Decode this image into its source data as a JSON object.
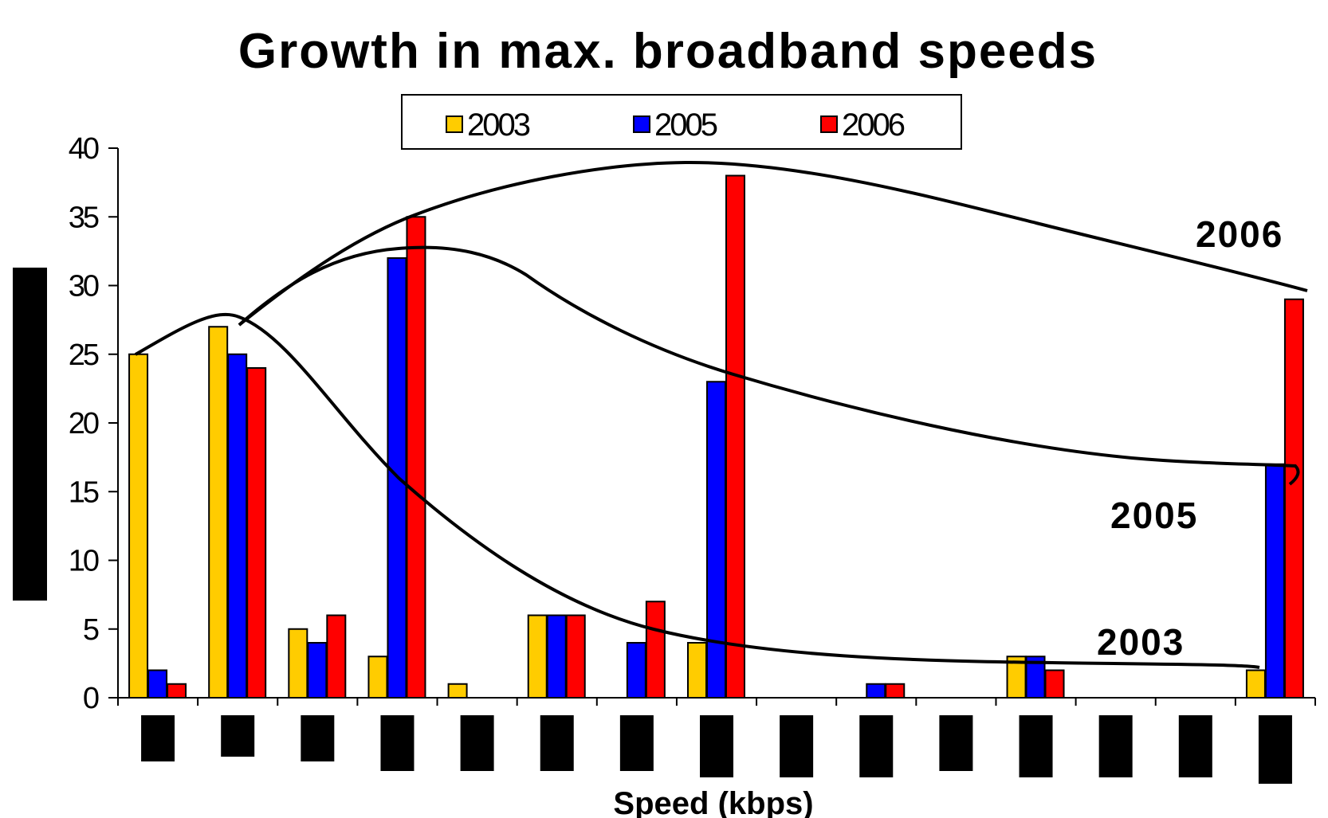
{
  "chart_data": {
    "type": "bar",
    "title": "Growth in max. broadband speeds",
    "xlabel": "Speed (kbps)",
    "ylabel": "",
    "ylim": [
      0,
      40
    ],
    "yticks": [
      0,
      5,
      10,
      15,
      20,
      25,
      30,
      35,
      40
    ],
    "grid": false,
    "legend_position": "top",
    "categories": [
      "",
      "",
      "",
      "",
      "",
      "",
      "",
      "",
      "",
      "",
      "",
      "",
      "",
      "",
      ""
    ],
    "series": [
      {
        "name": "2003",
        "color": "#FFCC00",
        "values": [
          25,
          27,
          5,
          3,
          1,
          6,
          0,
          4,
          0,
          0,
          0,
          3,
          0,
          0,
          2
        ]
      },
      {
        "name": "2005",
        "color": "#0000FF",
        "values": [
          2,
          25,
          4,
          32,
          0,
          6,
          4,
          23,
          0,
          1,
          0,
          3,
          0,
          0,
          17
        ]
      },
      {
        "name": "2006",
        "color": "#FF0000",
        "values": [
          1,
          24,
          6,
          35,
          0,
          6,
          7,
          38,
          0,
          1,
          0,
          2,
          0,
          0,
          29
        ]
      }
    ],
    "annotations": [
      {
        "text": "2006",
        "series": "2006"
      },
      {
        "text": "2005",
        "series": "2005"
      },
      {
        "text": "2003",
        "series": "2003"
      }
    ]
  }
}
